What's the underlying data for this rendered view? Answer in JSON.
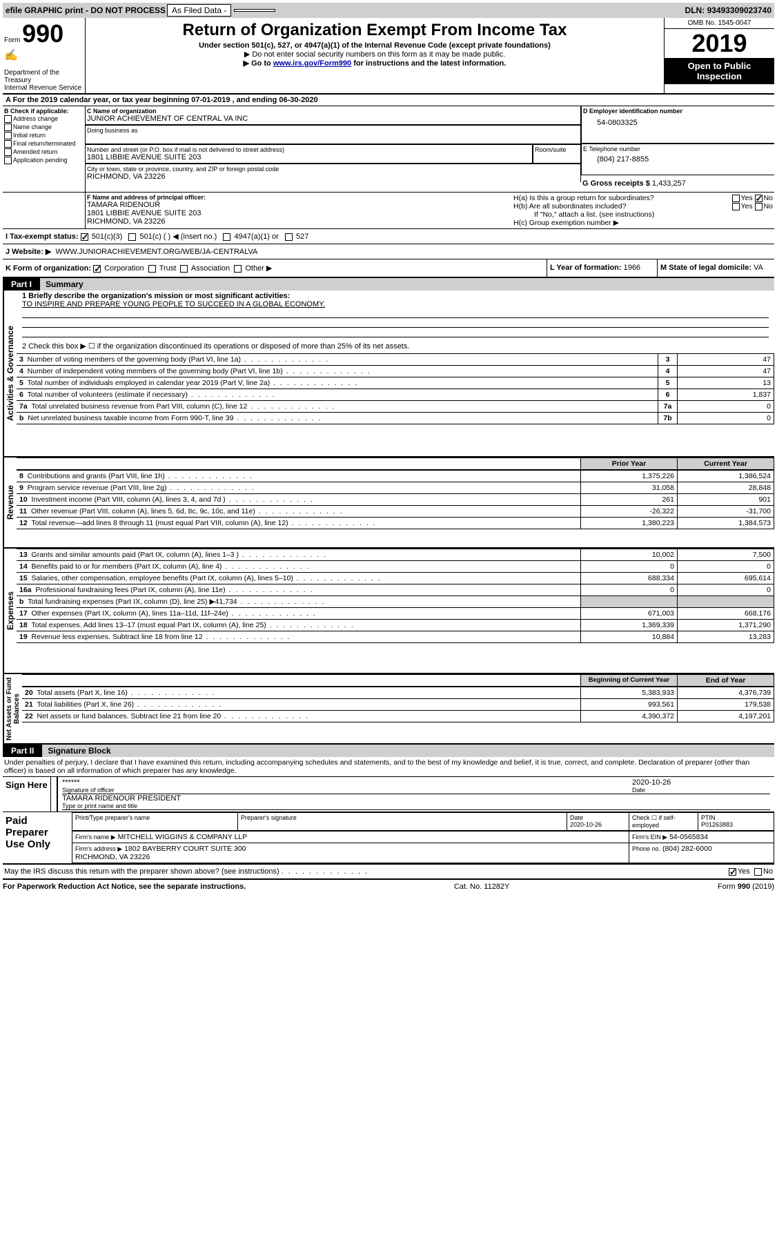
{
  "topbar": {
    "efile": "efile GRAPHIC print - DO NOT PROCESS",
    "asFiled": "As Filed Data -",
    "dln_label": "DLN:",
    "dln": "93493309023740"
  },
  "header": {
    "form_word": "Form",
    "form_num": "990",
    "dept": "Department of the Treasury\nInternal Revenue Service",
    "title": "Return of Organization Exempt From Income Tax",
    "sub1": "Under section 501(c), 527, or 4947(a)(1) of the Internal Revenue Code (except private foundations)",
    "sub2": "▶ Do not enter social security numbers on this form as it may be made public.",
    "sub3_a": "▶ Go to ",
    "sub3_link": "www.irs.gov/Form990",
    "sub3_b": " for instructions and the latest information.",
    "omb": "OMB No. 1545-0047",
    "year": "2019",
    "open": "Open to Public Inspection"
  },
  "rowA": {
    "text_a": "A   For the 2019 calendar year, or tax year beginning ",
    "begin": "07-01-2019",
    "text_b": "   , and ending ",
    "end": "06-30-2020"
  },
  "boxB": {
    "label": "B Check if applicable:",
    "opts": [
      "Address change",
      "Name change",
      "Initial return",
      "Final return/terminated",
      "Amended return",
      "Application pending"
    ]
  },
  "boxC": {
    "label": "C Name of organization",
    "name": "JUNIOR ACHIEVEMENT OF CENTRAL VA INC",
    "dba_label": "Doing business as",
    "street_label": "Number and street (or P.O. box if mail is not delivered to street address)",
    "room_label": "Room/suite",
    "street": "1801 LIBBIE AVENUE SUITE 203",
    "city_label": "City or town, state or province, country, and ZIP or foreign postal code",
    "city": "RICHMOND, VA  23226"
  },
  "boxD": {
    "label": "D Employer identification number",
    "value": "54-0803325"
  },
  "boxE": {
    "label": "E Telephone number",
    "value": "(804) 217-8855"
  },
  "boxG": {
    "label": "G Gross receipts $",
    "value": "1,433,257"
  },
  "boxF": {
    "label": "F  Name and address of principal officer:",
    "name": "TAMARA RIDENOUR",
    "addr1": "1801 LIBBIE AVENUE SUITE 203",
    "addr2": "RICHMOND, VA  23226"
  },
  "boxH": {
    "ha": "H(a)  Is this a group return for subordinates?",
    "hb": "H(b)  Are all subordinates included?",
    "hb_note": "If \"No,\" attach a list. (see instructions)",
    "hc": "H(c)  Group exemption number ▶",
    "yes": "Yes",
    "no": "No"
  },
  "rowI": {
    "label": "I   Tax-exempt status:",
    "opt1": "501(c)(3)",
    "opt2": "501(c) (   ) ◀ (insert no.)",
    "opt3": "4947(a)(1) or",
    "opt4": "527"
  },
  "rowJ": {
    "label": "J   Website: ▶",
    "value": "WWW.JUNIORACHIEVEMENT.ORG/WEB/JA-CENTRALVA"
  },
  "rowK": {
    "label": "K Form of organization:",
    "opts": [
      "Corporation",
      "Trust",
      "Association",
      "Other ▶"
    ]
  },
  "rowL": {
    "label": "L Year of formation:",
    "value": "1966"
  },
  "rowM": {
    "label": "M State of legal domicile:",
    "value": "VA"
  },
  "part1": {
    "label": "Part I",
    "title": "Summary"
  },
  "summary": {
    "l1_label": "1 Briefly describe the organization's mission or most significant activities:",
    "l1_value": "TO INSPIRE AND PREPARE YOUNG PEOPLE TO SUCCEED IN A GLOBAL ECONOMY.",
    "l2": "2   Check this box ▶ ☐  if the organization discontinued its operations or disposed of more than 25% of its net assets.",
    "rows_governance": [
      {
        "n": "3",
        "label": "Number of voting members of the governing body (Part VI, line 1a)",
        "box": "3",
        "val": "47"
      },
      {
        "n": "4",
        "label": "Number of independent voting members of the governing body (Part VI, line 1b)",
        "box": "4",
        "val": "47"
      },
      {
        "n": "5",
        "label": "Total number of individuals employed in calendar year 2019 (Part V, line 2a)",
        "box": "5",
        "val": "13"
      },
      {
        "n": "6",
        "label": "Total number of volunteers (estimate if necessary)",
        "box": "6",
        "val": "1,837"
      },
      {
        "n": "7a",
        "label": "Total unrelated business revenue from Part VIII, column (C), line 12",
        "box": "7a",
        "val": "0"
      },
      {
        "n": "b",
        "label": "Net unrelated business taxable income from Form 990-T, line 39",
        "box": "7b",
        "val": "0"
      }
    ],
    "prior_label": "Prior Year",
    "current_label": "Current Year",
    "bcy_label": "Beginning of Current Year",
    "eoy_label": "End of Year",
    "revenue_rows": [
      {
        "n": "8",
        "label": "Contributions and grants (Part VIII, line 1h)",
        "prior": "1,375,226",
        "cur": "1,386,524"
      },
      {
        "n": "9",
        "label": "Program service revenue (Part VIII, line 2g)",
        "prior": "31,058",
        "cur": "28,848"
      },
      {
        "n": "10",
        "label": "Investment income (Part VIII, column (A), lines 3, 4, and 7d )",
        "prior": "261",
        "cur": "901"
      },
      {
        "n": "11",
        "label": "Other revenue (Part VIII, column (A), lines 5, 6d, 8c, 9c, 10c, and 11e)",
        "prior": "-26,322",
        "cur": "-31,700"
      },
      {
        "n": "12",
        "label": "Total revenue—add lines 8 through 11 (must equal Part VIII, column (A), line 12)",
        "prior": "1,380,223",
        "cur": "1,384,573"
      }
    ],
    "expense_rows": [
      {
        "n": "13",
        "label": "Grants and similar amounts paid (Part IX, column (A), lines 1–3 )",
        "prior": "10,002",
        "cur": "7,500"
      },
      {
        "n": "14",
        "label": "Benefits paid to or for members (Part IX, column (A), line 4)",
        "prior": "0",
        "cur": "0"
      },
      {
        "n": "15",
        "label": "Salaries, other compensation, employee benefits (Part IX, column (A), lines 5–10)",
        "prior": "688,334",
        "cur": "695,614"
      },
      {
        "n": "16a",
        "label": "Professional fundraising fees (Part IX, column (A), line 11e)",
        "prior": "0",
        "cur": "0"
      },
      {
        "n": "b",
        "label": "Total fundraising expenses (Part IX, column (D), line 25) ▶41,734",
        "prior": "",
        "cur": ""
      },
      {
        "n": "17",
        "label": "Other expenses (Part IX, column (A), lines 11a–11d, 11f–24e)",
        "prior": "671,003",
        "cur": "668,176"
      },
      {
        "n": "18",
        "label": "Total expenses. Add lines 13–17 (must equal Part IX, column (A), line 25)",
        "prior": "1,369,339",
        "cur": "1,371,290"
      },
      {
        "n": "19",
        "label": "Revenue less expenses. Subtract line 18 from line 12",
        "prior": "10,884",
        "cur": "13,283"
      }
    ],
    "net_rows": [
      {
        "n": "20",
        "label": "Total assets (Part X, line 16)",
        "prior": "5,383,933",
        "cur": "4,376,739"
      },
      {
        "n": "21",
        "label": "Total liabilities (Part X, line 26)",
        "prior": "993,561",
        "cur": "179,538"
      },
      {
        "n": "22",
        "label": "Net assets or fund balances. Subtract line 21 from line 20",
        "prior": "4,390,372",
        "cur": "4,197,201"
      }
    ],
    "side_gov": "Activities & Governance",
    "side_rev": "Revenue",
    "side_exp": "Expenses",
    "side_net": "Net Assets or Fund Balances"
  },
  "part2": {
    "label": "Part II",
    "title": "Signature Block"
  },
  "perjury": "Under penalties of perjury, I declare that I have examined this return, including accompanying schedules and statements, and to the best of my knowledge and belief, it is true, correct, and complete. Declaration of preparer (other than officer) is based on all information of which preparer has any knowledge.",
  "sign": {
    "here": "Sign Here",
    "stars": "******",
    "sig_label": "Signature of officer",
    "date": "2020-10-26",
    "date_label": "Date",
    "name": "TAMARA RIDENOUR  PRESIDENT",
    "name_label": "Type or print name and title"
  },
  "preparer": {
    "title": "Paid Preparer Use Only",
    "h1": "Print/Type preparer's name",
    "h2": "Preparer's signature",
    "h3": "Date",
    "h3v": "2020-10-26",
    "h4": "Check ☐ if self-employed",
    "h5": "PTIN",
    "h5v": "P01263883",
    "firm_label": "Firm's name    ▶",
    "firm": "MITCHELL WIGGINS & COMPANY LLP",
    "ein_label": "Firm's EIN ▶",
    "ein": "54-0565834",
    "addr_label": "Firm's address ▶",
    "addr": "1802 BAYBERRY COURT SUITE 300\nRICHMOND, VA 23226",
    "phone_label": "Phone no.",
    "phone": "(804) 282-6000"
  },
  "footer": {
    "discuss": "May the IRS discuss this return with the preparer shown above? (see instructions)",
    "yes": "Yes",
    "no": "No",
    "paperwork": "For Paperwork Reduction Act Notice, see the separate instructions.",
    "cat": "Cat. No. 11282Y",
    "form": "Form 990 (2019)"
  }
}
